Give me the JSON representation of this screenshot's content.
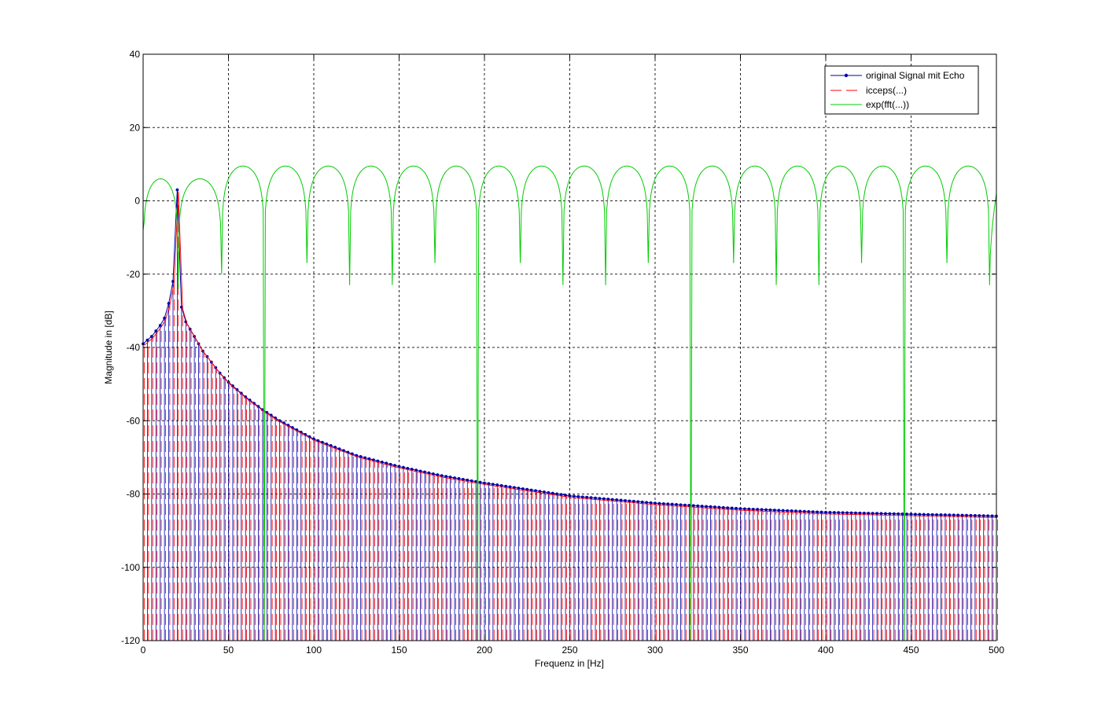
{
  "chart_data": {
    "type": "line",
    "title": "",
    "xlabel": "Frequenz in [Hz]",
    "ylabel": "Magnitude in [dB]",
    "xlim": [
      0,
      500
    ],
    "ylim": [
      -120,
      40
    ],
    "xticks": [
      0,
      50,
      100,
      150,
      200,
      250,
      300,
      350,
      400,
      450,
      500
    ],
    "yticks": [
      40,
      20,
      0,
      -20,
      -40,
      -60,
      -80,
      -100,
      -120
    ],
    "grid": true,
    "legend_position": "top-right",
    "series": [
      {
        "name": "original Signal mit Echo",
        "style": "stem-with-markers",
        "color": "#0000aa",
        "x_spacing": 2.5,
        "envelope": [
          [
            0,
            -39
          ],
          [
            2.5,
            -38
          ],
          [
            5,
            -37
          ],
          [
            7.5,
            -35.5
          ],
          [
            10,
            -34
          ],
          [
            12.5,
            -32
          ],
          [
            15,
            -28
          ],
          [
            17.5,
            -22
          ],
          [
            20,
            3
          ],
          [
            22.5,
            -29
          ],
          [
            25,
            -33
          ],
          [
            30,
            -37
          ],
          [
            35,
            -41
          ],
          [
            40,
            -44
          ],
          [
            45,
            -47
          ],
          [
            50,
            -49.5
          ],
          [
            60,
            -53.5
          ],
          [
            70,
            -57
          ],
          [
            80,
            -60
          ],
          [
            90,
            -62.5
          ],
          [
            100,
            -65
          ],
          [
            125,
            -69.5
          ],
          [
            150,
            -72.5
          ],
          [
            175,
            -75
          ],
          [
            200,
            -77
          ],
          [
            250,
            -80.5
          ],
          [
            300,
            -82.5
          ],
          [
            350,
            -84
          ],
          [
            400,
            -85
          ],
          [
            450,
            -85.5
          ],
          [
            500,
            -86
          ]
        ]
      },
      {
        "name": "icceps(...)",
        "style": "dashed-stem",
        "color": "#ff0000",
        "x_spacing": 2.5,
        "envelope": [
          [
            0,
            -39
          ],
          [
            2.5,
            -38
          ],
          [
            5,
            -37
          ],
          [
            7.5,
            -35.5
          ],
          [
            10,
            -34
          ],
          [
            12.5,
            -32
          ],
          [
            15,
            -28
          ],
          [
            17.5,
            -22
          ],
          [
            20,
            3
          ],
          [
            22.5,
            -29
          ],
          [
            25,
            -33
          ],
          [
            30,
            -37
          ],
          [
            35,
            -41
          ],
          [
            40,
            -44
          ],
          [
            45,
            -47
          ],
          [
            50,
            -49.5
          ],
          [
            60,
            -53.5
          ],
          [
            70,
            -57
          ],
          [
            80,
            -60
          ],
          [
            90,
            -62.5
          ],
          [
            100,
            -65
          ],
          [
            125,
            -69.5
          ],
          [
            150,
            -72.5
          ],
          [
            175,
            -75
          ],
          [
            200,
            -77
          ],
          [
            250,
            -80.5
          ],
          [
            300,
            -82.5
          ],
          [
            350,
            -84
          ],
          [
            400,
            -85
          ],
          [
            450,
            -85.5
          ],
          [
            500,
            -86
          ]
        ]
      },
      {
        "name": "exp(fft(...))",
        "style": "line",
        "color": "#00cc00",
        "dips": [
          0,
          20.5,
          46,
          71,
          96,
          121,
          146,
          171,
          196,
          221,
          246,
          271,
          296,
          321,
          346,
          371,
          396,
          421,
          446,
          471,
          496
        ],
        "dip_depths": [
          -8,
          -24,
          -20,
          -122,
          -17,
          -23,
          -23,
          -17,
          -122,
          -17,
          -23,
          -23,
          -17,
          -122,
          -17,
          -23,
          -23,
          -17,
          -122,
          -17,
          -23
        ],
        "peak_levels": [
          6,
          6,
          6,
          9.5,
          9.5,
          9.5,
          9.5,
          9.5,
          9.5,
          9.5,
          9.5,
          9.5,
          9.5,
          9.5,
          9.5,
          9.5,
          9.5,
          9.5,
          9.5,
          9.5,
          9.5
        ],
        "end_value": 2
      }
    ]
  }
}
